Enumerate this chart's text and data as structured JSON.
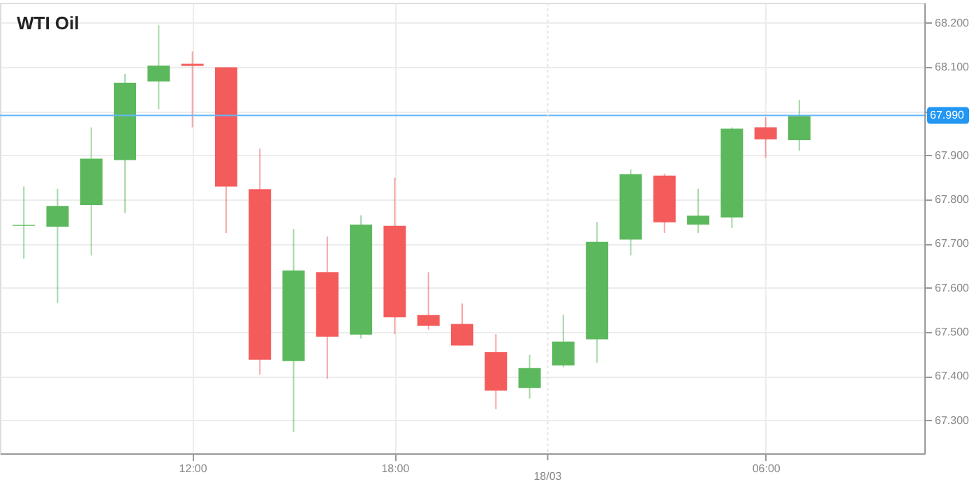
{
  "chart_data": {
    "type": "candlestick",
    "title": "WTI Oil",
    "categories": [
      null,
      null,
      null,
      null,
      null,
      "12:00",
      null,
      null,
      null,
      null,
      null,
      "18:00",
      null,
      null,
      null,
      null,
      null,
      null,
      null,
      null,
      null,
      null,
      "06:00",
      null,
      null,
      null,
      null
    ],
    "annotations": [
      "18/03"
    ],
    "ohlc": [
      [
        67.74,
        67.829,
        67.666,
        67.742
      ],
      [
        67.738,
        67.824,
        67.566,
        67.785
      ],
      [
        67.787,
        67.963,
        67.673,
        67.892
      ],
      [
        67.889,
        68.084,
        67.769,
        68.064
      ],
      [
        68.067,
        68.194,
        68.004,
        68.103
      ],
      [
        68.107,
        68.135,
        67.963,
        68.102
      ],
      [
        68.099,
        68.099,
        67.724,
        67.829
      ],
      [
        67.823,
        67.915,
        67.403,
        67.437
      ],
      [
        67.434,
        67.733,
        67.274,
        67.639
      ],
      [
        67.635,
        67.716,
        67.394,
        67.489
      ],
      [
        67.494,
        67.764,
        67.485,
        67.743
      ],
      [
        67.74,
        67.849,
        67.495,
        67.533
      ],
      [
        67.538,
        67.635,
        67.505,
        67.514
      ],
      [
        67.518,
        67.564,
        67.469,
        67.469
      ],
      [
        67.454,
        67.495,
        67.325,
        67.367
      ],
      [
        67.373,
        67.448,
        67.349,
        67.418
      ],
      [
        67.424,
        67.539,
        67.42,
        67.478
      ],
      [
        67.483,
        67.749,
        67.43,
        67.704
      ],
      [
        67.709,
        67.868,
        67.673,
        67.857
      ],
      [
        67.854,
        67.858,
        67.724,
        67.748
      ],
      [
        67.743,
        67.824,
        67.724,
        67.763
      ],
      [
        67.759,
        67.963,
        67.735,
        67.96
      ],
      [
        67.963,
        67.986,
        67.894,
        67.936
      ],
      [
        67.934,
        68.025,
        67.91,
        67.989
      ],
      null,
      null,
      null
    ],
    "colors": [
      "#5cb85c",
      "#5cb85c",
      "#5cb85c",
      "#5cb85c",
      "#5cb85c",
      "#f45b5b",
      "#f45b5b",
      "#f45b5b",
      "#5cb85c",
      "#f45b5b",
      "#5cb85c",
      "#f45b5b",
      "#f45b5b",
      "#f45b5b",
      "#f45b5b",
      "#5cb85c",
      "#5cb85c",
      "#5cb85c",
      "#5cb85c",
      "#f45b5b",
      "#5cb85c",
      "#5cb85c",
      "#f45b5b",
      "#5cb85c",
      null,
      null,
      null
    ],
    "ylim": [
      67.225,
      68.245
    ],
    "yticks": [
      {
        "value": 67.3,
        "label": "67.300"
      },
      {
        "value": 67.4,
        "label": "67.400"
      },
      {
        "value": 67.5,
        "label": "67.500"
      },
      {
        "value": 67.6,
        "label": "67.600"
      },
      {
        "value": 67.7,
        "label": "67.700"
      },
      {
        "value": 67.8,
        "label": "67.800"
      },
      {
        "value": 67.9,
        "label": "67.900"
      },
      {
        "value": 68.0,
        "label": null
      },
      {
        "value": 68.1,
        "label": "68.100"
      },
      {
        "value": 68.2,
        "label": "68.200"
      }
    ],
    "ref_lines": [
      {
        "axis": "y",
        "value": 67.99,
        "label": "67.990",
        "color": "#64b5f6"
      }
    ],
    "grid": true
  }
}
